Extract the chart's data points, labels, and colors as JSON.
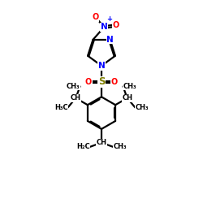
{
  "bg_color": "#ffffff",
  "bond_color": "#000000",
  "bond_lw": 1.6,
  "font_size": 6.5,
  "atom_colors": {
    "N": "#0000ff",
    "O": "#ff0000",
    "S": "#808000",
    "C": "#000000"
  },
  "xlim": [
    0,
    10
  ],
  "ylim": [
    0,
    10
  ],
  "figsize": [
    2.5,
    2.5
  ],
  "dpi": 100
}
